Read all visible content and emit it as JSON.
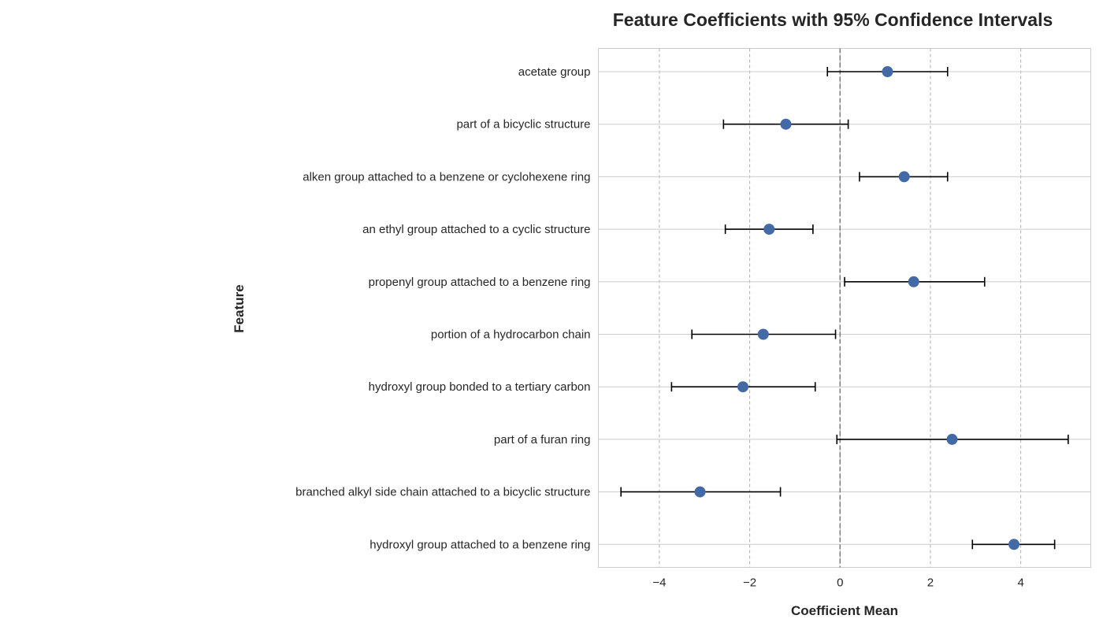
{
  "chart_data": {
    "type": "scatter",
    "title": "Feature Coefficients with 95% Confidence Intervals",
    "xlabel": "Coefficient Mean",
    "ylabel": "Feature",
    "xlim": [
      -5.35,
      5.55
    ],
    "xticks": [
      -4,
      -2,
      0,
      2,
      4
    ],
    "xtick_labels": [
      "−4",
      "−2",
      "0",
      "2",
      "4"
    ],
    "reference_line_x": 0,
    "grid": true,
    "colors": {
      "point": "#4469a7",
      "error_bar": "#000000",
      "grid": "#cccccc",
      "reference_line": "#808080"
    },
    "features": [
      "acetate group",
      "part of a bicyclic structure",
      "alken group attached to a benzene or cyclohexene ring",
      "an ethyl group attached to a cyclic structure",
      "propenyl group attached to a benzene ring",
      "portion of a hydrocarbon chain",
      "hydroxyl group bonded to a tertiary carbon",
      "part of a furan ring",
      "branched alkyl side chain attached to a bicyclic structure",
      "hydroxyl group attached to a benzene ring"
    ],
    "means": [
      1.05,
      -1.2,
      1.42,
      -1.57,
      1.63,
      -1.7,
      -2.15,
      2.48,
      -3.1,
      3.85
    ],
    "ci_lower": [
      -0.28,
      -2.58,
      0.43,
      -2.54,
      0.1,
      -3.28,
      -3.73,
      -0.07,
      -4.85,
      2.93
    ],
    "ci_upper": [
      2.38,
      0.18,
      2.38,
      -0.6,
      3.2,
      -0.1,
      -0.55,
      5.05,
      -1.32,
      4.75
    ]
  }
}
